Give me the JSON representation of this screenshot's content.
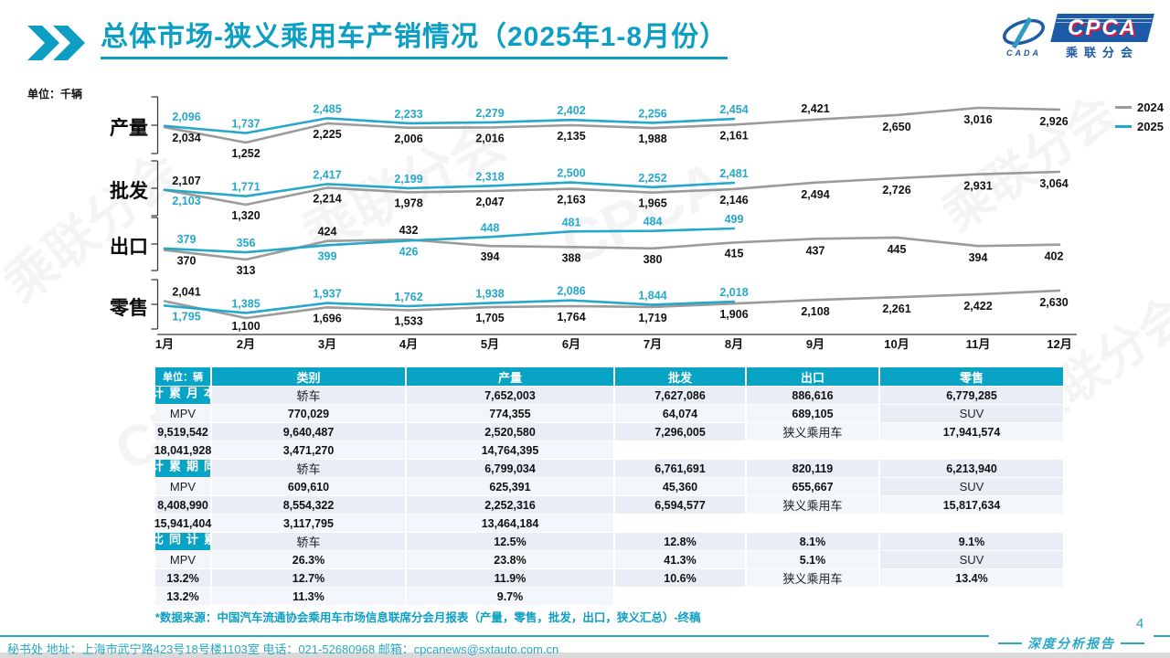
{
  "header": {
    "title": "总体市场-狭义乘用车产销情况（2025年1-8月份）",
    "logo": {
      "cada": "CADA",
      "cpca": "CPCA",
      "sub": "乘联分会"
    }
  },
  "chart": {
    "unit_label": "单位：千辆",
    "months": [
      "1月",
      "2月",
      "3月",
      "4月",
      "5月",
      "6月",
      "7月",
      "8月",
      "9月",
      "10月",
      "11月",
      "12月"
    ],
    "legend": [
      {
        "label": "2024",
        "color": "#9b9b9b"
      },
      {
        "label": "2025",
        "color": "#25a8ca"
      }
    ]
  },
  "chart_data": [
    {
      "type": "line",
      "title": "产量",
      "unit": "千辆",
      "x": [
        "1月",
        "2月",
        "3月",
        "4月",
        "5月",
        "6月",
        "7月",
        "8月",
        "9月",
        "10月",
        "11月",
        "12月"
      ],
      "series": [
        {
          "name": "2024",
          "color": "#9b9b9b",
          "label_color": "#111111",
          "values": [
            2034,
            1252,
            2225,
            2006,
            2016,
            2135,
            1988,
            2161,
            2421,
            2650,
            3016,
            2926
          ]
        },
        {
          "name": "2025",
          "color": "#25a8ca",
          "label_color": "#25a8ca",
          "values": [
            2096,
            1737,
            2485,
            2233,
            2279,
            2402,
            2256,
            2454
          ]
        }
      ]
    },
    {
      "type": "line",
      "title": "批发",
      "unit": "千辆",
      "x": [
        "1月",
        "2月",
        "3月",
        "4月",
        "5月",
        "6月",
        "7月",
        "8月",
        "9月",
        "10月",
        "11月",
        "12月"
      ],
      "series": [
        {
          "name": "2024",
          "color": "#9b9b9b",
          "label_color": "#111111",
          "values": [
            2107,
            1320,
            2214,
            1978,
            2047,
            2163,
            1965,
            2146,
            2494,
            2726,
            2931,
            3064
          ]
        },
        {
          "name": "2025",
          "color": "#25a8ca",
          "label_color": "#25a8ca",
          "values": [
            2103,
            1771,
            2417,
            2199,
            2318,
            2500,
            2252,
            2481
          ]
        }
      ]
    },
    {
      "type": "line",
      "title": "出口",
      "unit": "千辆",
      "x": [
        "1月",
        "2月",
        "3月",
        "4月",
        "5月",
        "6月",
        "7月",
        "8月",
        "9月",
        "10月",
        "11月",
        "12月"
      ],
      "series": [
        {
          "name": "2024",
          "color": "#9b9b9b",
          "label_color": "#111111",
          "values": [
            370,
            313,
            424,
            432,
            394,
            388,
            380,
            415,
            437,
            445,
            394,
            402
          ]
        },
        {
          "name": "2025",
          "color": "#25a8ca",
          "label_color": "#25a8ca",
          "values": [
            379,
            356,
            399,
            426,
            448,
            481,
            484,
            499
          ]
        }
      ]
    },
    {
      "type": "line",
      "title": "零售",
      "unit": "千辆",
      "x": [
        "1月",
        "2月",
        "3月",
        "4月",
        "5月",
        "6月",
        "7月",
        "8月",
        "9月",
        "10月",
        "11月",
        "12月"
      ],
      "series": [
        {
          "name": "2024",
          "color": "#9b9b9b",
          "label_color": "#111111",
          "values": [
            2041,
            1100,
            1696,
            1533,
            1705,
            1764,
            1719,
            1906,
            2108,
            2261,
            2422,
            2630
          ]
        },
        {
          "name": "2025",
          "color": "#25a8ca",
          "label_color": "#25a8ca",
          "values": [
            1795,
            1385,
            1937,
            1762,
            1938,
            2086,
            1844,
            2018
          ]
        }
      ]
    }
  ],
  "table": {
    "unit_header": "单位：辆",
    "columns": [
      "类别",
      "产量",
      "批发",
      "出口",
      "零售"
    ],
    "groups": [
      {
        "label": "本月累计",
        "rows": [
          [
            "轿车",
            "7,652,003",
            "7,627,086",
            "886,616",
            "6,779,285"
          ],
          [
            "MPV",
            "770,029",
            "774,355",
            "64,074",
            "689,105"
          ],
          [
            "SUV",
            "9,519,542",
            "9,640,487",
            "2,520,580",
            "7,296,005"
          ],
          [
            "狭义乘用车",
            "17,941,574",
            "18,041,928",
            "3,471,270",
            "14,764,395"
          ]
        ]
      },
      {
        "label": "同期累计",
        "rows": [
          [
            "轿车",
            "6,799,034",
            "6,761,691",
            "820,119",
            "6,213,940"
          ],
          [
            "MPV",
            "609,610",
            "625,391",
            "45,360",
            "655,667"
          ],
          [
            "SUV",
            "8,408,990",
            "8,554,322",
            "2,252,316",
            "6,594,577"
          ],
          [
            "狭义乘用车",
            "15,817,634",
            "15,941,404",
            "3,117,795",
            "13,464,184"
          ]
        ]
      },
      {
        "label": "累计同比",
        "rows": [
          [
            "轿车",
            "12.5%",
            "12.8%",
            "8.1%",
            "9.1%"
          ],
          [
            "MPV",
            "26.3%",
            "23.8%",
            "41.3%",
            "5.1%"
          ],
          [
            "SUV",
            "13.2%",
            "12.7%",
            "11.9%",
            "10.6%"
          ],
          [
            "狭义乘用车",
            "13.4%",
            "13.2%",
            "11.3%",
            "9.7%"
          ]
        ]
      }
    ]
  },
  "footnote": "*数据来源：中国汽车流通协会乘用车市场信息联席分会月报表（产量，零售，批发，出口，狭义汇总）-终稿",
  "page_number": "4",
  "footer": {
    "left": "秘书处  地址：上海市武宁路423号18号楼1103室 电话：021-52680968  邮箱：cpcanews@sxtauto.com.cn",
    "right": "深度分析报告"
  },
  "watermarks": [
    "乘联分会",
    "CPCA"
  ]
}
